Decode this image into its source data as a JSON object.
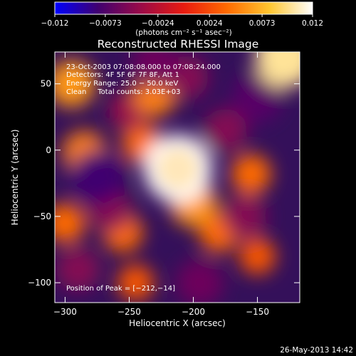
{
  "colorbar": {
    "tick_labels": [
      "−0.012",
      "−0.0073",
      "−0.0024",
      "0.0024",
      "0.0073",
      "0.012"
    ],
    "tick_values": [
      -0.012,
      -0.0073,
      -0.0024,
      0.0024,
      0.0073,
      0.012
    ],
    "range": [
      -0.012,
      0.012
    ],
    "units_label": "(photons cm⁻² s⁻¹ asec⁻²)",
    "stops": [
      "#0000ff",
      "#400070",
      "#9a0a48",
      "#e81b10",
      "#ff6a00",
      "#ffc630",
      "#ffffff"
    ]
  },
  "chart_data": {
    "type": "heatmap",
    "title": "Reconstructed RHESSI Image",
    "xlabel": "Heliocentric X (arcsec)",
    "ylabel": "Heliocentric Y (arcsec)",
    "xlim": [
      -308,
      -117
    ],
    "ylim": [
      -115,
      74
    ],
    "x_ticks": [
      -300,
      -250,
      -200,
      -150
    ],
    "y_ticks": [
      -100,
      -50,
      0,
      50
    ],
    "x_tick_labels": [
      "−300",
      "−250",
      "−200",
      "−150"
    ],
    "y_tick_labels": [
      "−100",
      "−50",
      "0",
      "50"
    ],
    "peak_position": [
      -212,
      -14
    ],
    "annotations": [
      "23-Oct-2003 07:08:08.000 to 07:08:24.000",
      "Detectors: 4F 5F 6F 7F 8F, Att 1",
      "Energy Range: 25.0 − 50.0 keV",
      "Clean     Total counts: 3.03E+03"
    ],
    "peak_text": "Position of Peak = [−212,−14]",
    "features": [
      {
        "x": -212,
        "y": -14,
        "value": 0.012
      },
      {
        "x": -200,
        "y": -40,
        "value": 0.006
      },
      {
        "x": -240,
        "y": 5,
        "value": 0.004
      },
      {
        "x": -128,
        "y": 70,
        "value": 0.01
      },
      {
        "x": -295,
        "y": 50,
        "value": 0.006
      },
      {
        "x": -285,
        "y": -2,
        "value": 0.005
      },
      {
        "x": -230,
        "y": 42,
        "value": 0.005
      },
      {
        "x": -255,
        "y": -62,
        "value": 0.004
      },
      {
        "x": -180,
        "y": -62,
        "value": 0.004
      },
      {
        "x": -155,
        "y": -18,
        "value": 0.004
      },
      {
        "x": -300,
        "y": -55,
        "value": 0.004
      },
      {
        "x": -150,
        "y": -80,
        "value": 0.003
      },
      {
        "x": -245,
        "y": -100,
        "value": 0.003
      },
      {
        "x": -275,
        "y": -20,
        "value": -0.008
      },
      {
        "x": -150,
        "y": 40,
        "value": -0.007
      },
      {
        "x": -230,
        "y": 65,
        "value": -0.006
      },
      {
        "x": -265,
        "y": -45,
        "value": -0.005
      },
      {
        "x": -175,
        "y": 15,
        "value": -0.005
      },
      {
        "x": -160,
        "y": -50,
        "value": -0.005
      },
      {
        "x": -195,
        "y": -100,
        "value": -0.006
      },
      {
        "x": -205,
        "y": 55,
        "value": -0.005
      },
      {
        "x": -290,
        "y": -90,
        "value": -0.005
      },
      {
        "x": -250,
        "y": 30,
        "value": -0.004
      }
    ]
  },
  "footer": {
    "timestamp": "26-May-2013 14:42"
  }
}
